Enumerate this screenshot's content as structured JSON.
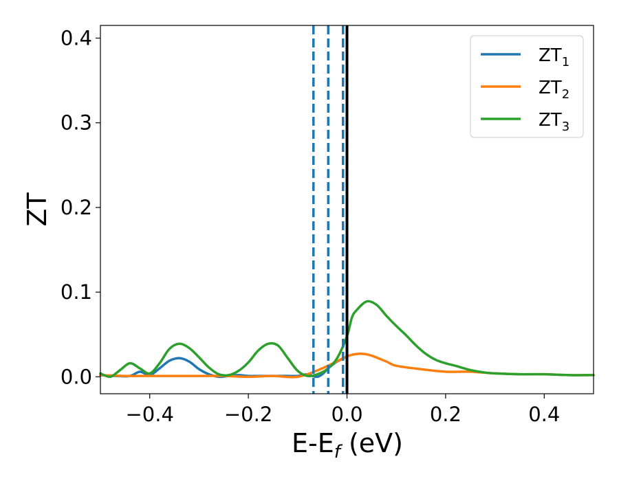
{
  "chart_data": {
    "type": "line",
    "xlabel_main": "E-E",
    "xlabel_sub": "f",
    "xlabel_unit": " (eV)",
    "ylabel": "ZT",
    "xlim": [
      -0.5,
      0.5
    ],
    "ylim": [
      -0.02,
      0.415
    ],
    "x_ticks": [
      -0.4,
      -0.2,
      0.0,
      0.2,
      0.4
    ],
    "x_tick_labels": [
      "−0.4",
      "−0.2",
      "0.0",
      "0.2",
      "0.4"
    ],
    "y_ticks": [
      0.0,
      0.1,
      0.2,
      0.3,
      0.4
    ],
    "y_tick_labels": [
      "0.0",
      "0.1",
      "0.2",
      "0.3",
      "0.4"
    ],
    "grid": false,
    "legend_position": "top-right",
    "series": [
      {
        "name": "ZT",
        "name_sub": "1",
        "color": "#1f77b4",
        "x": [
          -0.5,
          -0.47,
          -0.44,
          -0.42,
          -0.4,
          -0.38,
          -0.36,
          -0.34,
          -0.32,
          -0.3,
          -0.28,
          -0.26,
          -0.24,
          -0.22,
          -0.2,
          -0.18,
          -0.16,
          -0.14,
          -0.12,
          -0.1,
          -0.08,
          -0.07,
          -0.06,
          -0.05,
          -0.04,
          -0.03,
          -0.02,
          -0.01,
          0.0
        ],
        "y": [
          0.002,
          0.001,
          0.001,
          0.006,
          0.002,
          0.01,
          0.019,
          0.022,
          0.018,
          0.009,
          0.003,
          0.0,
          0.001,
          0.002,
          0.001,
          0.001,
          0.001,
          0.001,
          0.001,
          0.001,
          0.003,
          0.001,
          0.0,
          0.003,
          0.009,
          0.014,
          0.018,
          0.021,
          0.024
        ]
      },
      {
        "name": "ZT",
        "name_sub": "2",
        "color": "#ff7f0e",
        "x": [
          -0.5,
          -0.45,
          -0.4,
          -0.35,
          -0.3,
          -0.25,
          -0.2,
          -0.15,
          -0.1,
          -0.05,
          0.0,
          0.02,
          0.035,
          0.05,
          0.08,
          0.1,
          0.15,
          0.2,
          0.25,
          0.3,
          0.35,
          0.4,
          0.45,
          0.5
        ],
        "y": [
          0.002,
          0.001,
          0.001,
          0.001,
          0.001,
          0.001,
          0.0,
          0.001,
          0.0,
          0.01,
          0.024,
          0.027,
          0.027,
          0.025,
          0.018,
          0.013,
          0.009,
          0.006,
          0.006,
          0.004,
          0.003,
          0.003,
          0.002,
          0.002
        ]
      },
      {
        "name": "ZT",
        "name_sub": "3",
        "color": "#2ca02c",
        "x": [
          -0.5,
          -0.48,
          -0.46,
          -0.44,
          -0.42,
          -0.4,
          -0.38,
          -0.36,
          -0.34,
          -0.32,
          -0.3,
          -0.28,
          -0.26,
          -0.24,
          -0.22,
          -0.2,
          -0.18,
          -0.16,
          -0.14,
          -0.12,
          -0.1,
          -0.08,
          -0.06,
          -0.04,
          -0.02,
          0.0,
          0.01,
          0.02,
          0.04,
          0.06,
          0.08,
          0.1,
          0.12,
          0.14,
          0.16,
          0.18,
          0.2,
          0.22,
          0.25,
          0.28,
          0.3,
          0.35,
          0.4,
          0.45,
          0.5
        ],
        "y": [
          0.004,
          0.0,
          0.008,
          0.016,
          0.01,
          0.004,
          0.016,
          0.033,
          0.039,
          0.034,
          0.023,
          0.011,
          0.003,
          0.002,
          0.007,
          0.017,
          0.031,
          0.039,
          0.037,
          0.022,
          0.007,
          0.001,
          0.003,
          0.009,
          0.022,
          0.048,
          0.07,
          0.079,
          0.089,
          0.085,
          0.072,
          0.06,
          0.049,
          0.037,
          0.027,
          0.02,
          0.016,
          0.013,
          0.008,
          0.005,
          0.004,
          0.003,
          0.003,
          0.002,
          0.002
        ]
      }
    ],
    "vlines": [
      {
        "x": -0.068,
        "style": "dashed",
        "color": "#1f77b4"
      },
      {
        "x": -0.038,
        "style": "dashed",
        "color": "#1f77b4"
      },
      {
        "x": -0.008,
        "style": "dashed",
        "color": "#1f77b4"
      },
      {
        "x": 0.0,
        "style": "solid",
        "color": "#000000"
      }
    ]
  }
}
